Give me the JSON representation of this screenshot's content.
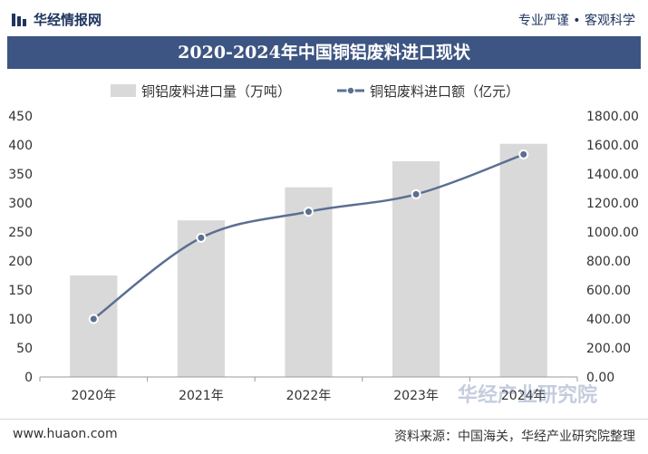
{
  "header": {
    "brand_name": "华经情报网",
    "tagline": "专业严谨 • 客观科学",
    "logo_icon": "brand-logo-icon",
    "title": "2020-2024年中国铜铝废料进口现状"
  },
  "footer": {
    "website": "www.huaon.com",
    "source": "资料来源：中国海关，华经产业研究院整理"
  },
  "watermark": {
    "text": "华经产业研究院"
  },
  "chart_data": {
    "type": "bar",
    "categories": [
      "2020年",
      "2021年",
      "2022年",
      "2023年",
      "2024年"
    ],
    "series": [
      {
        "name": "铜铝废料进口量（万吨）",
        "type": "bar",
        "axis": "left",
        "color": "#d9d9d9",
        "values": [
          175,
          270,
          327,
          372,
          402
        ]
      },
      {
        "name": "铜铝废料进口额（亿元）",
        "type": "line",
        "axis": "right",
        "color": "#5b6f92",
        "values": [
          400,
          960,
          1140,
          1260,
          1535
        ]
      }
    ],
    "ylim_left": [
      0,
      450
    ],
    "yticks_left": [
      "0",
      "50",
      "100",
      "150",
      "200",
      "250",
      "300",
      "350",
      "400",
      "450"
    ],
    "ylim_right": [
      0,
      1800
    ],
    "yticks_right": [
      "0.00",
      "200.00",
      "400.00",
      "600.00",
      "800.00",
      "1000.00",
      "1200.00",
      "1400.00",
      "1600.00",
      "1800.00"
    ],
    "legend_position": "top-center",
    "grid": false
  }
}
